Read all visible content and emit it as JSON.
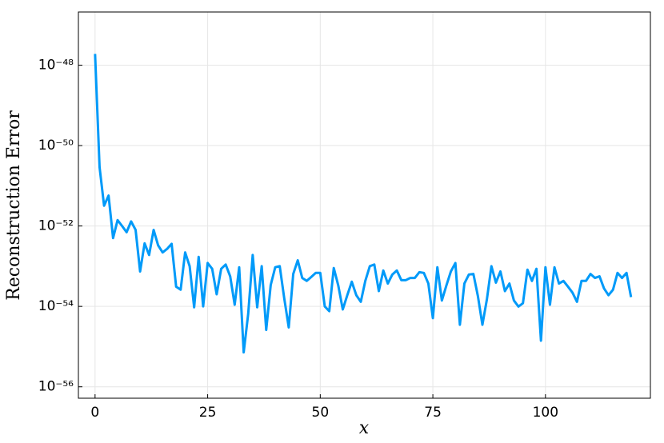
{
  "chart_data": {
    "type": "line",
    "xlabel": "x",
    "ylabel": "Reconstruction Error",
    "xlim": [
      -3.7,
      123.3
    ],
    "xticks": [
      0,
      25,
      50,
      75,
      100
    ],
    "ylim": [
      2.1e-47,
      5.2e-57
    ],
    "yscale": "log",
    "yticks": [
      {
        "value": 1e-48,
        "label": "10⁻⁴⁸"
      },
      {
        "value": 1e-50,
        "label": "10⁻⁵⁰"
      },
      {
        "value": 1e-52,
        "label": "10⁻⁵²"
      },
      {
        "value": 1e-54,
        "label": "10⁻⁵⁴"
      },
      {
        "value": 1e-56,
        "label": "10⁻⁵⁶"
      }
    ],
    "grid": true,
    "x": [
      0,
      1,
      2,
      3,
      4,
      5,
      6,
      7,
      8,
      9,
      10,
      11,
      12,
      13,
      14,
      15,
      16,
      17,
      18,
      19,
      20,
      21,
      22,
      23,
      24,
      25,
      26,
      27,
      28,
      29,
      30,
      31,
      32,
      33,
      34,
      35,
      36,
      37,
      38,
      39,
      40,
      41,
      42,
      43,
      44,
      45,
      46,
      47,
      48,
      49,
      50,
      51,
      52,
      53,
      54,
      55,
      56,
      57,
      58,
      59,
      60,
      61,
      62,
      63,
      64,
      65,
      66,
      67,
      68,
      69,
      70,
      71,
      72,
      73,
      74,
      75,
      76,
      77,
      78,
      79,
      80,
      81,
      82,
      83,
      84,
      85,
      86,
      87,
      88,
      89,
      90,
      91,
      92,
      93,
      94,
      95,
      96,
      97,
      98,
      99,
      100,
      101,
      102,
      103,
      104,
      105,
      106,
      107,
      108,
      109,
      110,
      111,
      112,
      113,
      114,
      115,
      116,
      117,
      118,
      119
    ],
    "series": [
      {
        "color": "#009af9",
        "values": [
          1.9e-48,
          2.9e-51,
          3.2e-52,
          5.7e-52,
          5e-53,
          1.4e-52,
          1e-52,
          7e-53,
          1.3e-52,
          8e-53,
          7.4e-54,
          3.7e-53,
          1.9e-53,
          8e-53,
          3.3e-53,
          2.2e-53,
          2.7e-53,
          3.6e-53,
          3.1e-54,
          2.6e-54,
          2.2e-53,
          1e-53,
          9.5e-55,
          1.7e-53,
          1e-54,
          1.2e-53,
          8.6e-54,
          2e-54,
          8.6e-54,
          1.1e-53,
          5.6e-54,
          1.1e-54,
          9.4e-54,
          7.2e-56,
          6.5e-55,
          1.9e-53,
          9.5e-55,
          1e-53,
          2.6e-55,
          3.4e-54,
          9.4e-54,
          1e-53,
          1.6e-54,
          3e-55,
          6.4e-54,
          1.4e-53,
          5.1e-54,
          4.3e-54,
          5.4e-54,
          6.8e-54,
          6.8e-54,
          1e-54,
          7.6e-55,
          9e-54,
          3.3e-54,
          8.4e-55,
          1.9e-54,
          4.1e-54,
          1.9e-54,
          1.3e-54,
          4.3e-54,
          1e-53,
          1.1e-53,
          2.4e-54,
          7.8e-54,
          3.7e-54,
          6.2e-54,
          7.8e-54,
          4.5e-54,
          4.5e-54,
          5.1e-54,
          5.1e-54,
          7.1e-54,
          6.8e-54,
          3.7e-54,
          5.1e-55,
          9.4e-54,
          1.4e-54,
          3.3e-54,
          7.4e-54,
          1.2e-53,
          3.5e-55,
          3.7e-54,
          6.2e-54,
          6.4e-54,
          1.8e-54,
          3.5e-55,
          1.5e-54,
          1e-53,
          3.9e-54,
          7.4e-54,
          2.4e-54,
          3.7e-54,
          1.4e-54,
          9.9e-55,
          1.2e-54,
          8.2e-54,
          4.3e-54,
          8.6e-54,
          1.4e-55,
          9.4e-54,
          1.1e-54,
          9.4e-54,
          3.7e-54,
          4.3e-54,
          3.1e-54,
          2.2e-54,
          1.3e-54,
          4.3e-54,
          4.3e-54,
          6.4e-54,
          5.1e-54,
          5.6e-54,
          2.8e-54,
          1.9e-54,
          2.6e-54,
          6.8e-54,
          5.1e-54,
          6.8e-54,
          1.7e-54
        ]
      }
    ]
  }
}
